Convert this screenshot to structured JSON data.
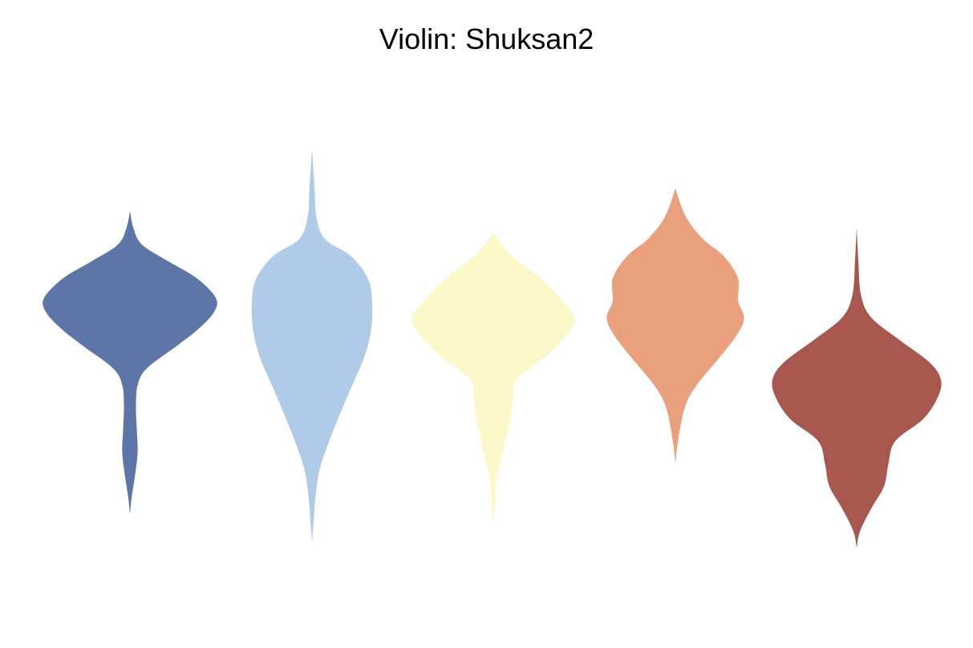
{
  "title": "Violin: Shuksan2",
  "chart_data": {
    "type": "violin",
    "title": "Violin: Shuksan2",
    "xlabel": "",
    "ylabel": "",
    "grid": false,
    "axes_visible": false,
    "legend": "none",
    "ylim": [
      0,
      10
    ],
    "series": [
      {
        "color": "#5e75a8",
        "min": 1.7,
        "max": 7.1,
        "density": [
          [
            1.7,
            0.0
          ],
          [
            2.0,
            0.02
          ],
          [
            2.4,
            0.06
          ],
          [
            2.8,
            0.09
          ],
          [
            3.2,
            0.08
          ],
          [
            3.6,
            0.07
          ],
          [
            4.0,
            0.09
          ],
          [
            4.3,
            0.2
          ],
          [
            4.7,
            0.55
          ],
          [
            5.0,
            0.8
          ],
          [
            5.3,
            0.98
          ],
          [
            5.55,
            1.0
          ],
          [
            5.9,
            0.78
          ],
          [
            6.2,
            0.45
          ],
          [
            6.5,
            0.14
          ],
          [
            6.8,
            0.04
          ],
          [
            7.1,
            0.0
          ]
        ]
      },
      {
        "color": "#b0cbe8",
        "min": 1.2,
        "max": 8.2,
        "density": [
          [
            1.2,
            0.0
          ],
          [
            1.6,
            0.02
          ],
          [
            2.0,
            0.04
          ],
          [
            2.5,
            0.09
          ],
          [
            3.0,
            0.2
          ],
          [
            3.5,
            0.33
          ],
          [
            4.0,
            0.47
          ],
          [
            4.5,
            0.61
          ],
          [
            5.0,
            0.69
          ],
          [
            5.5,
            0.7
          ],
          [
            5.9,
            0.65
          ],
          [
            6.3,
            0.45
          ],
          [
            6.6,
            0.15
          ],
          [
            7.0,
            0.05
          ],
          [
            7.5,
            0.03
          ],
          [
            8.2,
            0.0
          ]
        ]
      },
      {
        "color": "#fdf8c9",
        "min": 1.5,
        "max": 6.7,
        "density": [
          [
            1.5,
            0.0
          ],
          [
            1.9,
            0.02
          ],
          [
            2.3,
            0.04
          ],
          [
            2.6,
            0.08
          ],
          [
            3.0,
            0.14
          ],
          [
            3.4,
            0.2
          ],
          [
            3.8,
            0.23
          ],
          [
            4.1,
            0.27
          ],
          [
            4.5,
            0.6
          ],
          [
            4.9,
            0.86
          ],
          [
            5.2,
            0.95
          ],
          [
            5.5,
            0.8
          ],
          [
            5.9,
            0.55
          ],
          [
            6.3,
            0.22
          ],
          [
            6.7,
            0.0
          ]
        ]
      },
      {
        "color": "#eba07d",
        "min": 2.6,
        "max": 7.5,
        "density": [
          [
            2.6,
            0.0
          ],
          [
            3.0,
            0.03
          ],
          [
            3.6,
            0.11
          ],
          [
            4.0,
            0.25
          ],
          [
            4.5,
            0.52
          ],
          [
            4.9,
            0.72
          ],
          [
            5.2,
            0.8
          ],
          [
            5.5,
            0.73
          ],
          [
            5.9,
            0.73
          ],
          [
            6.3,
            0.56
          ],
          [
            6.6,
            0.32
          ],
          [
            7.0,
            0.12
          ],
          [
            7.5,
            0.0
          ]
        ]
      },
      {
        "color": "#a8574f",
        "min": 1.1,
        "max": 6.8,
        "density": [
          [
            1.1,
            0.0
          ],
          [
            1.4,
            0.04
          ],
          [
            1.8,
            0.17
          ],
          [
            2.2,
            0.32
          ],
          [
            2.6,
            0.37
          ],
          [
            3.0,
            0.45
          ],
          [
            3.4,
            0.78
          ],
          [
            3.8,
            0.95
          ],
          [
            4.1,
            0.98
          ],
          [
            4.4,
            0.85
          ],
          [
            4.8,
            0.5
          ],
          [
            5.2,
            0.17
          ],
          [
            5.6,
            0.05
          ],
          [
            6.2,
            0.02
          ],
          [
            6.8,
            0.0
          ]
        ]
      }
    ]
  }
}
